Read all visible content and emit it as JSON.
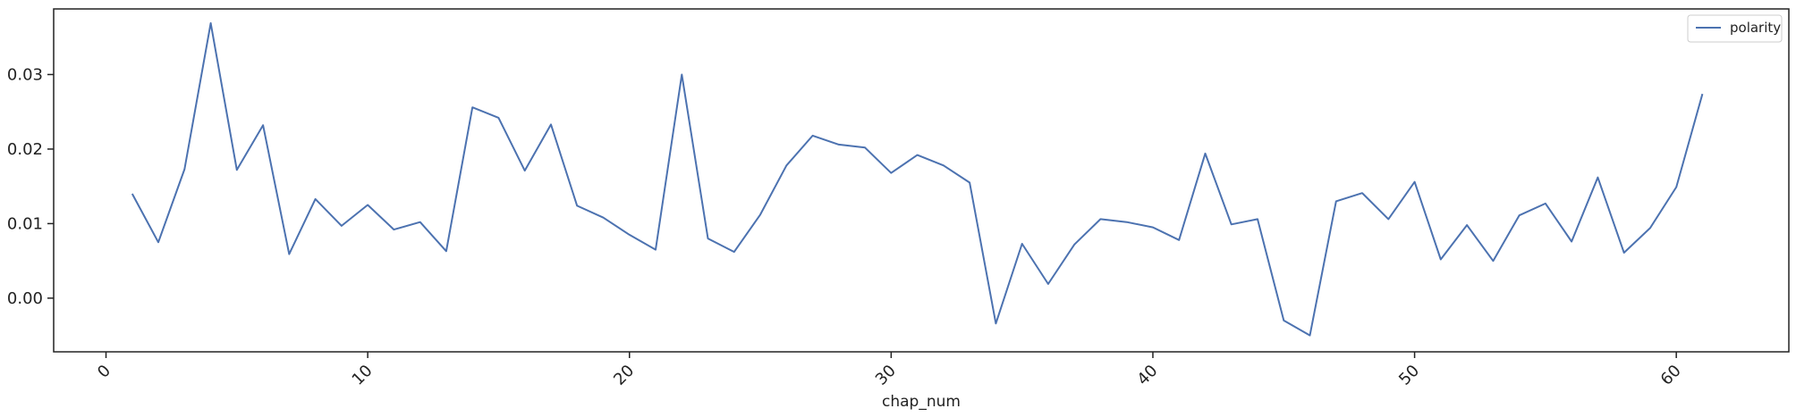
{
  "chart_data": {
    "type": "line",
    "title": "",
    "xlabel": "chap_num",
    "ylabel": "",
    "xlim": [
      -2.0,
      64.3
    ],
    "ylim": [
      -0.0072,
      0.0388
    ],
    "xticks": [
      0,
      10,
      20,
      30,
      40,
      50,
      60
    ],
    "xtick_labels": [
      "0",
      "10",
      "20",
      "30",
      "40",
      "50",
      "60"
    ],
    "yticks": [
      0.0,
      0.01,
      0.02,
      0.03
    ],
    "ytick_labels": [
      "0.00",
      "0.01",
      "0.02",
      "0.03"
    ],
    "grid": false,
    "legend_position": "top-right",
    "colors": {
      "line": "#4c72b0",
      "axes": "#222222"
    },
    "series": [
      {
        "name": "polarity",
        "x": [
          1,
          2,
          3,
          4,
          5,
          6,
          7,
          8,
          9,
          10,
          11,
          12,
          13,
          14,
          15,
          16,
          17,
          18,
          19,
          20,
          21,
          22,
          23,
          24,
          25,
          26,
          27,
          28,
          29,
          30,
          31,
          32,
          33,
          34,
          35,
          36,
          37,
          38,
          39,
          40,
          41,
          42,
          43,
          44,
          45,
          46,
          47,
          48,
          49,
          50,
          51,
          52,
          53,
          54,
          55,
          56,
          57,
          58,
          59,
          60,
          61
        ],
        "y": [
          0.014,
          0.0075,
          0.0173,
          0.0369,
          0.0172,
          0.0232,
          0.0059,
          0.0133,
          0.0097,
          0.0125,
          0.0092,
          0.0102,
          0.0063,
          0.0256,
          0.0242,
          0.0171,
          0.0233,
          0.0124,
          0.0108,
          0.0085,
          0.0065,
          0.03,
          0.008,
          0.0062,
          0.0112,
          0.0178,
          0.0218,
          0.0206,
          0.0202,
          0.0168,
          0.0192,
          0.0178,
          0.0155,
          -0.0034,
          0.0073,
          0.0019,
          0.0072,
          0.0106,
          0.0102,
          0.0095,
          0.0078,
          0.0194,
          0.0099,
          0.0106,
          -0.003,
          -0.005,
          0.013,
          0.0141,
          0.0106,
          0.0156,
          0.0052,
          0.0098,
          0.005,
          0.0111,
          0.0127,
          0.0076,
          0.0162,
          0.0061,
          0.0094,
          0.0149,
          0.0274
        ]
      }
    ]
  }
}
